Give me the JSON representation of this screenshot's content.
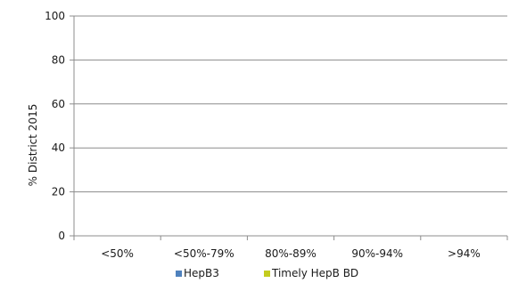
{
  "chart_data": {
    "type": "bar",
    "title": "",
    "xlabel": "",
    "ylabel": "% District 2015",
    "categories": [
      "<50%",
      "<50%-79%",
      "80%-89%",
      "90%-94%",
      ">94%"
    ],
    "ylim": [
      0,
      100
    ],
    "yticks": [
      0,
      20,
      40,
      60,
      80,
      100
    ],
    "grid": true,
    "legend_position": "bottom",
    "series": [
      {
        "name": "HepB3",
        "color": "#4f81bd",
        "values": [
          0,
          0,
          0,
          0,
          0
        ]
      },
      {
        "name": "Timely HepB BD",
        "color": "#c4cc1f",
        "values": [
          0,
          0,
          0,
          0,
          0
        ]
      }
    ]
  }
}
